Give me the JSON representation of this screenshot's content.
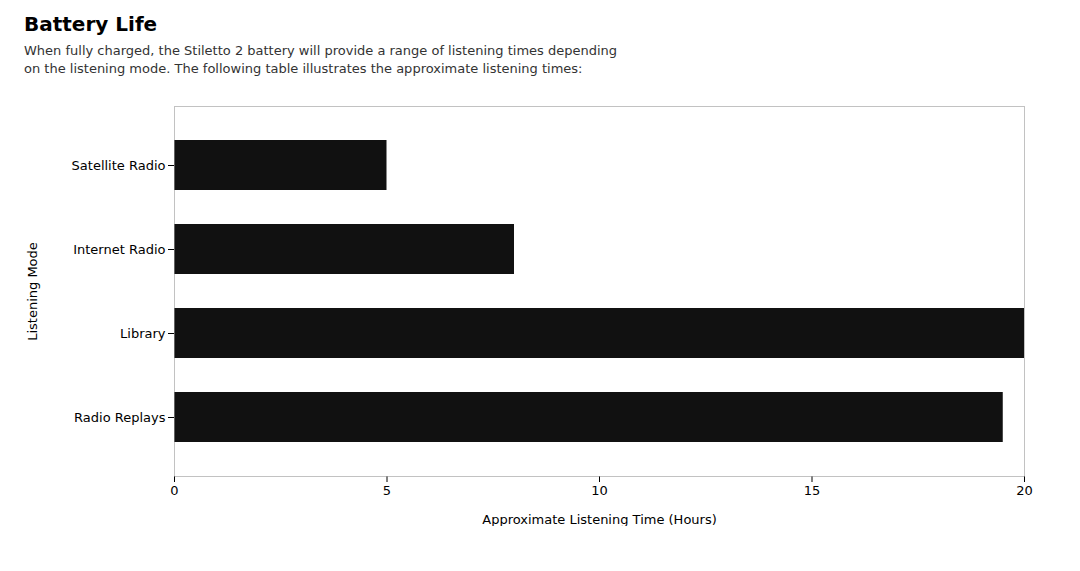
{
  "chart_data": {
    "type": "bar",
    "orientation": "horizontal",
    "title": "Battery Life",
    "subtitle": "When fully charged, the Stiletto 2 battery will provide a range of listening times depending\non the listening mode. The following table illustrates the approximate listening times:",
    "categories": [
      "Satellite Radio",
      "Internet Radio",
      "Library",
      "Radio Replays"
    ],
    "values": [
      5,
      8,
      20,
      19.5
    ],
    "color": "#111111",
    "xlim": [
      0,
      20
    ],
    "xticks": [
      0,
      5,
      10,
      15,
      20
    ],
    "xlabel": "Approximate Listening Time (Hours)",
    "ylabel": "Listening Mode",
    "grid": false
  }
}
